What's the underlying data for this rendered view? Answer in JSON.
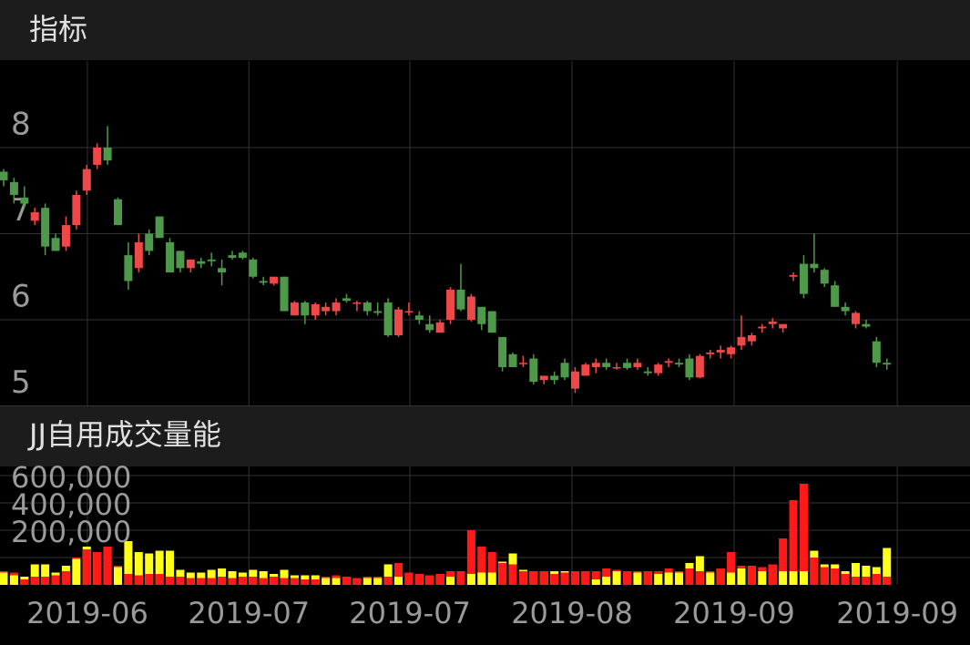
{
  "chart_data": [
    {
      "type": "candlestick",
      "title": "指标",
      "up_color": "#ef4848",
      "down_color": "#4f9a4a",
      "open": [
        7.72,
        7.6,
        7.42,
        7.15,
        7.3,
        6.95,
        6.85,
        7.1,
        7.5,
        7.8,
        8.0,
        7.4,
        6.75,
        6.6,
        7.0,
        7.2,
        6.9,
        6.8,
        6.6,
        6.68,
        6.7,
        6.6,
        6.75,
        6.78,
        6.7,
        6.45,
        6.42,
        6.5,
        6.05,
        6.2,
        6.05,
        6.1,
        6.1,
        6.25,
        6.2,
        6.2,
        6.1,
        6.2,
        5.82,
        6.1,
        6.05,
        5.95,
        5.85,
        6.0,
        6.35,
        6.0,
        6.15,
        6.1,
        5.8,
        5.6,
        5.5,
        5.55,
        5.3,
        5.35,
        5.5,
        5.2,
        5.35,
        5.45,
        5.5,
        5.45,
        5.5,
        5.45,
        5.4,
        5.38,
        5.5,
        5.5,
        5.55,
        5.33,
        5.6,
        5.62,
        5.6,
        5.7,
        5.75,
        5.9,
        5.95,
        5.9,
        6.5,
        6.65,
        6.65,
        6.58,
        6.4,
        6.15,
        5.95,
        5.95,
        5.75,
        5.5
      ],
      "high": [
        7.75,
        7.65,
        7.55,
        7.3,
        7.35,
        7.0,
        7.2,
        7.5,
        7.8,
        8.05,
        8.25,
        7.42,
        6.9,
        7.0,
        7.05,
        7.2,
        6.95,
        6.8,
        6.7,
        6.72,
        6.78,
        6.7,
        6.8,
        6.8,
        6.72,
        6.5,
        6.5,
        6.5,
        6.22,
        6.22,
        6.2,
        6.2,
        6.25,
        6.3,
        6.22,
        6.22,
        6.2,
        6.25,
        6.15,
        6.2,
        6.1,
        6.05,
        6.0,
        6.38,
        6.65,
        6.3,
        6.15,
        6.1,
        5.8,
        5.62,
        5.58,
        5.6,
        5.35,
        5.4,
        5.55,
        5.45,
        5.5,
        5.55,
        5.55,
        5.5,
        5.55,
        5.55,
        5.45,
        5.5,
        5.55,
        5.55,
        5.6,
        5.6,
        5.65,
        5.7,
        5.7,
        6.05,
        5.85,
        5.95,
        6.02,
        5.95,
        6.55,
        6.75,
        7.0,
        6.6,
        6.45,
        6.2,
        6.1,
        6.0,
        5.8,
        5.55
      ],
      "low": [
        7.55,
        7.35,
        7.3,
        7.1,
        6.75,
        6.8,
        6.8,
        7.05,
        7.45,
        7.75,
        7.8,
        7.1,
        6.35,
        6.55,
        6.75,
        6.95,
        6.55,
        6.55,
        6.55,
        6.6,
        6.62,
        6.4,
        6.7,
        6.7,
        6.48,
        6.4,
        6.4,
        6.1,
        6.05,
        5.95,
        6.0,
        6.05,
        6.05,
        6.2,
        6.1,
        6.05,
        6.05,
        5.8,
        5.8,
        6.05,
        5.95,
        5.85,
        5.85,
        5.95,
        6.1,
        5.98,
        5.88,
        5.85,
        5.4,
        5.45,
        5.45,
        5.25,
        5.25,
        5.25,
        5.3,
        5.15,
        5.35,
        5.38,
        5.42,
        5.42,
        5.42,
        5.42,
        5.35,
        5.35,
        5.45,
        5.45,
        5.3,
        5.32,
        5.55,
        5.55,
        5.55,
        5.65,
        5.7,
        5.85,
        5.9,
        5.85,
        6.45,
        6.25,
        6.55,
        6.38,
        6.15,
        6.05,
        5.9,
        5.9,
        5.45,
        5.42
      ],
      "close": [
        7.62,
        7.45,
        7.35,
        7.25,
        6.85,
        6.8,
        7.1,
        7.45,
        7.75,
        8.0,
        7.85,
        7.1,
        6.45,
        6.9,
        6.8,
        6.95,
        6.55,
        6.6,
        6.7,
        6.65,
        6.68,
        6.55,
        6.72,
        6.72,
        6.5,
        6.43,
        6.5,
        6.1,
        6.2,
        6.05,
        6.18,
        6.15,
        6.2,
        6.22,
        6.2,
        6.1,
        6.08,
        5.82,
        6.12,
        6.1,
        6.0,
        5.88,
        5.97,
        6.35,
        6.12,
        6.27,
        5.95,
        5.85,
        5.45,
        5.45,
        5.5,
        5.28,
        5.35,
        5.3,
        5.33,
        5.4,
        5.48,
        5.5,
        5.45,
        5.45,
        5.44,
        5.5,
        5.38,
        5.48,
        5.52,
        5.48,
        5.33,
        5.58,
        5.62,
        5.65,
        5.68,
        5.8,
        5.82,
        5.92,
        5.98,
        5.95,
        6.52,
        6.3,
        6.6,
        6.42,
        6.15,
        6.1,
        6.08,
        5.92,
        5.5,
        5.48
      ],
      "xlim": [
        -0.35,
        93
      ],
      "ylim": [
        5,
        9
      ],
      "yticks": [
        5,
        6,
        7,
        8
      ],
      "xticks": [
        {
          "value": 8.06,
          "label": "2019-06"
        },
        {
          "value": 23.6,
          "label": "2019-07"
        },
        {
          "value": 39.1,
          "label": "2019-07"
        },
        {
          "value": 54.7,
          "label": "2019-08"
        },
        {
          "value": 70.3,
          "label": "2019-09"
        },
        {
          "value": 86.0,
          "label": "2019-09"
        }
      ],
      "grid": true
    },
    {
      "type": "bar",
      "title": "JJ自用成交量能",
      "series": [
        {
          "color": "#ffff1a",
          "values": [
            90000,
            70000,
            60000,
            150000,
            150000,
            90000,
            140000,
            190000,
            280000,
            240000,
            280000,
            130000,
            320000,
            240000,
            230000,
            250000,
            250000,
            110000,
            90000,
            90000,
            110000,
            120000,
            100000,
            90000,
            110000,
            100000,
            80000,
            110000,
            70000,
            70000,
            70000,
            50000,
            50000,
            60000,
            50000,
            50000,
            50000,
            150000,
            60000,
            90000,
            80000,
            70000,
            80000,
            60000,
            100000,
            80000,
            90000,
            90000,
            170000,
            230000,
            110000,
            100000,
            100000,
            100000,
            100000,
            100000,
            100000,
            40000,
            60000,
            100000,
            100000,
            90000,
            100000,
            80000,
            90000,
            90000,
            160000,
            210000,
            90000,
            120000,
            90000,
            120000,
            140000,
            100000,
            150000,
            100000,
            100000,
            100000,
            250000,
            150000,
            150000,
            100000,
            160000,
            140000,
            130000,
            270000
          ]
        },
        {
          "color": "#ff1a1a",
          "values": [
            100000,
            90000,
            40000,
            60000,
            60000,
            70000,
            100000,
            200000,
            260000,
            240000,
            280000,
            140000,
            80000,
            70000,
            80000,
            80000,
            60000,
            60000,
            50000,
            50000,
            50000,
            60000,
            50000,
            60000,
            60000,
            50000,
            60000,
            50000,
            50000,
            40000,
            40000,
            60000,
            70000,
            60000,
            50000,
            60000,
            60000,
            60000,
            160000,
            90000,
            80000,
            70000,
            80000,
            100000,
            100000,
            400000,
            280000,
            240000,
            160000,
            150000,
            100000,
            100000,
            100000,
            80000,
            90000,
            100000,
            100000,
            100000,
            120000,
            110000,
            100000,
            100000,
            100000,
            100000,
            120000,
            100000,
            120000,
            100000,
            100000,
            120000,
            240000,
            140000,
            140000,
            130000,
            150000,
            340000,
            620000,
            740000,
            200000,
            130000,
            120000,
            80000,
            60000,
            60000,
            80000,
            60000
          ]
        }
      ],
      "ylim": [
        0,
        800000
      ],
      "yticks": [
        {
          "value": 200000,
          "label": "200,000"
        },
        {
          "value": 400000,
          "label": "400,000"
        },
        {
          "value": 600000,
          "label": "600,000"
        }
      ],
      "grid": true
    }
  ]
}
